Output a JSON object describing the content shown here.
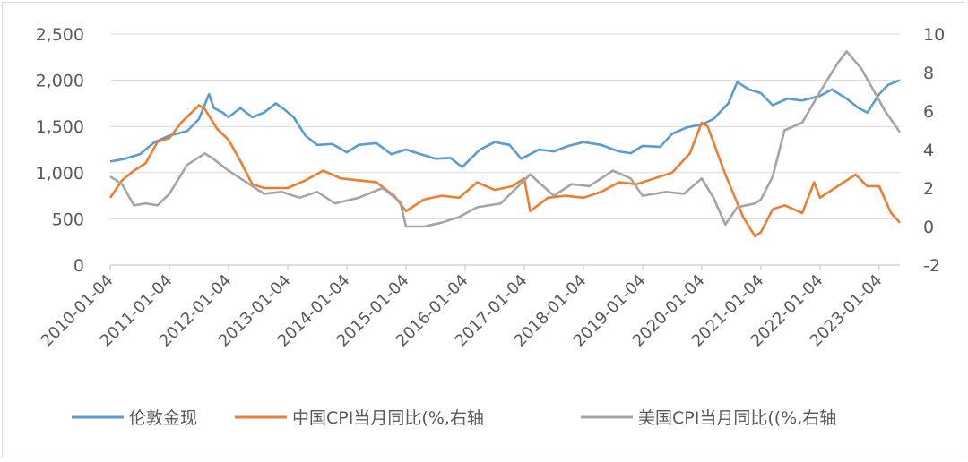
{
  "chart_data": {
    "type": "line",
    "title": "",
    "xlabel": "",
    "ylabel": "",
    "y_left": {
      "ylim": [
        0,
        2500
      ],
      "ticks": [
        "0",
        "500",
        "1,000",
        "1,500",
        "2,000",
        "2,500"
      ],
      "tick_values": [
        0,
        500,
        1000,
        1500,
        2000,
        2500
      ]
    },
    "y_right": {
      "ylim": [
        -2,
        10
      ],
      "ticks": [
        "-2",
        "0",
        "2",
        "4",
        "6",
        "8",
        "10"
      ],
      "tick_values": [
        -2,
        0,
        2,
        4,
        6,
        8,
        10
      ]
    },
    "x_ticks": [
      "2010-01-04",
      "2011-01-04",
      "2012-01-04",
      "2013-01-04",
      "2014-01-04",
      "2015-01-04",
      "2016-01-04",
      "2017-01-04",
      "2018-01-04",
      "2019-01-04",
      "2020-01-04",
      "2021-01-04",
      "2022-01-04",
      "2023-01-04"
    ],
    "x_range": [
      2010.0,
      2023.35
    ],
    "grid": {
      "horizontal": true,
      "vertical": false
    },
    "legend_position": "bottom",
    "series": [
      {
        "name": "伦敦金现",
        "axis": "left",
        "color": "#5b9bd5",
        "x": [
          2010.0,
          2010.25,
          2010.5,
          2010.75,
          2011.0,
          2011.3,
          2011.5,
          2011.67,
          2011.75,
          2011.9,
          2012.0,
          2012.2,
          2012.4,
          2012.6,
          2012.8,
          2012.95,
          2013.1,
          2013.3,
          2013.5,
          2013.75,
          2014.0,
          2014.2,
          2014.5,
          2014.75,
          2015.0,
          2015.25,
          2015.5,
          2015.75,
          2015.95,
          2016.25,
          2016.5,
          2016.75,
          2016.95,
          2017.25,
          2017.5,
          2017.75,
          2018.0,
          2018.3,
          2018.6,
          2018.8,
          2019.0,
          2019.3,
          2019.5,
          2019.75,
          2020.0,
          2020.2,
          2020.45,
          2020.6,
          2020.8,
          2021.0,
          2021.2,
          2021.45,
          2021.7,
          2022.0,
          2022.2,
          2022.45,
          2022.65,
          2022.8,
          2023.0,
          2023.15,
          2023.35
        ],
        "values": [
          1120,
          1150,
          1200,
          1330,
          1400,
          1450,
          1580,
          1850,
          1700,
          1650,
          1600,
          1700,
          1600,
          1650,
          1750,
          1680,
          1600,
          1400,
          1300,
          1310,
          1220,
          1300,
          1320,
          1200,
          1250,
          1200,
          1150,
          1160,
          1060,
          1250,
          1330,
          1300,
          1150,
          1250,
          1230,
          1290,
          1330,
          1300,
          1230,
          1210,
          1290,
          1280,
          1420,
          1490,
          1520,
          1580,
          1750,
          1980,
          1900,
          1860,
          1730,
          1800,
          1780,
          1830,
          1900,
          1800,
          1700,
          1650,
          1850,
          1950,
          2000
        ]
      },
      {
        "name": "中国CPI当月同比(%,右轴",
        "axis": "right",
        "color": "#ed7d31",
        "x": [
          2010.0,
          2010.2,
          2010.4,
          2010.6,
          2010.8,
          2011.0,
          2011.2,
          2011.5,
          2011.6,
          2011.8,
          2012.0,
          2012.2,
          2012.4,
          2012.6,
          2012.8,
          2013.0,
          2013.3,
          2013.6,
          2013.9,
          2014.2,
          2014.5,
          2014.8,
          2015.0,
          2015.3,
          2015.6,
          2015.9,
          2016.2,
          2016.5,
          2016.8,
          2017.0,
          2017.1,
          2017.4,
          2017.7,
          2018.0,
          2018.3,
          2018.6,
          2018.9,
          2019.2,
          2019.5,
          2019.8,
          2020.0,
          2020.1,
          2020.4,
          2020.7,
          2020.9,
          2021.0,
          2021.2,
          2021.4,
          2021.7,
          2021.9,
          2022.0,
          2022.3,
          2022.6,
          2022.8,
          2023.0,
          2023.2,
          2023.35
        ],
        "values": [
          1.5,
          2.4,
          2.9,
          3.3,
          4.4,
          4.6,
          5.4,
          6.3,
          6.1,
          5.1,
          4.5,
          3.4,
          2.2,
          2.0,
          2.0,
          2.0,
          2.4,
          2.9,
          2.5,
          2.4,
          2.3,
          1.6,
          0.8,
          1.4,
          1.6,
          1.5,
          2.3,
          1.9,
          2.1,
          2.5,
          0.8,
          1.5,
          1.6,
          1.5,
          1.8,
          2.3,
          2.2,
          2.5,
          2.8,
          3.8,
          5.4,
          5.2,
          2.7,
          0.5,
          -0.5,
          -0.3,
          0.9,
          1.1,
          0.7,
          2.3,
          1.5,
          2.1,
          2.7,
          2.1,
          2.1,
          0.7,
          0.2
        ]
      },
      {
        "name": "美国CPI当月同比((%,右轴",
        "axis": "right",
        "color": "#a5a5a5",
        "x": [
          2010.0,
          2010.2,
          2010.4,
          2010.6,
          2010.8,
          2011.0,
          2011.3,
          2011.6,
          2011.75,
          2012.0,
          2012.3,
          2012.6,
          2012.9,
          2013.2,
          2013.5,
          2013.8,
          2014.2,
          2014.6,
          2014.9,
          2015.0,
          2015.3,
          2015.6,
          2015.9,
          2016.2,
          2016.6,
          2016.9,
          2017.1,
          2017.5,
          2017.8,
          2018.1,
          2018.5,
          2018.8,
          2019.0,
          2019.4,
          2019.7,
          2020.0,
          2020.2,
          2020.4,
          2020.6,
          2020.9,
          2021.0,
          2021.2,
          2021.4,
          2021.7,
          2022.0,
          2022.3,
          2022.45,
          2022.7,
          2022.9,
          2023.1,
          2023.35
        ],
        "values": [
          2.6,
          2.2,
          1.1,
          1.2,
          1.1,
          1.7,
          3.2,
          3.8,
          3.5,
          2.9,
          2.3,
          1.7,
          1.8,
          1.5,
          1.8,
          1.2,
          1.5,
          2.0,
          1.3,
          0.0,
          0.0,
          0.2,
          0.5,
          1.0,
          1.2,
          2.1,
          2.7,
          1.6,
          2.2,
          2.1,
          2.9,
          2.5,
          1.6,
          1.8,
          1.7,
          2.5,
          1.5,
          0.1,
          1.0,
          1.2,
          1.4,
          2.6,
          5.0,
          5.4,
          7.0,
          8.5,
          9.1,
          8.2,
          7.1,
          6.0,
          4.9
        ]
      }
    ]
  }
}
